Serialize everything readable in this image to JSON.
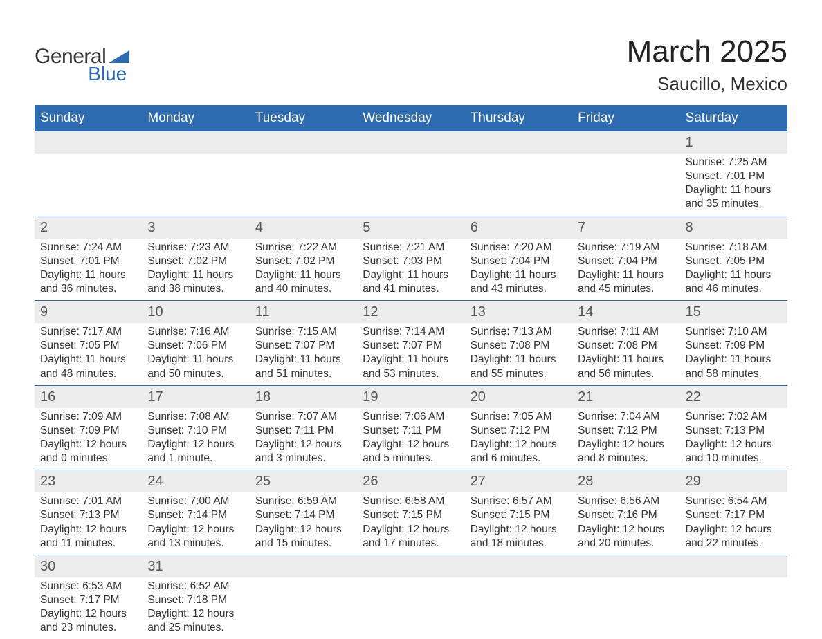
{
  "brand": {
    "line1": "General",
    "line2": "Blue"
  },
  "header": {
    "month": "March 2025",
    "location": "Saucillo, Mexico"
  },
  "colors": {
    "header_bg": "#2d6bb0",
    "header_text": "#ffffff",
    "daynum_bg": "#ececec",
    "border": "#2d6bb0",
    "body_text": "#333333",
    "page_bg": "#ffffff"
  },
  "typography": {
    "month_title_fontsize": 44,
    "location_fontsize": 26,
    "weekday_fontsize": 19,
    "daynum_fontsize": 20,
    "cell_fontsize": 15.5
  },
  "weekdays": [
    "Sunday",
    "Monday",
    "Tuesday",
    "Wednesday",
    "Thursday",
    "Friday",
    "Saturday"
  ],
  "weeks": [
    [
      null,
      null,
      null,
      null,
      null,
      null,
      {
        "n": "1",
        "sunrise": "7:25 AM",
        "sunset": "7:01 PM",
        "dl1": "11 hours",
        "dl2": "and 35 minutes."
      }
    ],
    [
      {
        "n": "2",
        "sunrise": "7:24 AM",
        "sunset": "7:01 PM",
        "dl1": "11 hours",
        "dl2": "and 36 minutes."
      },
      {
        "n": "3",
        "sunrise": "7:23 AM",
        "sunset": "7:02 PM",
        "dl1": "11 hours",
        "dl2": "and 38 minutes."
      },
      {
        "n": "4",
        "sunrise": "7:22 AM",
        "sunset": "7:02 PM",
        "dl1": "11 hours",
        "dl2": "and 40 minutes."
      },
      {
        "n": "5",
        "sunrise": "7:21 AM",
        "sunset": "7:03 PM",
        "dl1": "11 hours",
        "dl2": "and 41 minutes."
      },
      {
        "n": "6",
        "sunrise": "7:20 AM",
        "sunset": "7:04 PM",
        "dl1": "11 hours",
        "dl2": "and 43 minutes."
      },
      {
        "n": "7",
        "sunrise": "7:19 AM",
        "sunset": "7:04 PM",
        "dl1": "11 hours",
        "dl2": "and 45 minutes."
      },
      {
        "n": "8",
        "sunrise": "7:18 AM",
        "sunset": "7:05 PM",
        "dl1": "11 hours",
        "dl2": "and 46 minutes."
      }
    ],
    [
      {
        "n": "9",
        "sunrise": "7:17 AM",
        "sunset": "7:05 PM",
        "dl1": "11 hours",
        "dl2": "and 48 minutes."
      },
      {
        "n": "10",
        "sunrise": "7:16 AM",
        "sunset": "7:06 PM",
        "dl1": "11 hours",
        "dl2": "and 50 minutes."
      },
      {
        "n": "11",
        "sunrise": "7:15 AM",
        "sunset": "7:07 PM",
        "dl1": "11 hours",
        "dl2": "and 51 minutes."
      },
      {
        "n": "12",
        "sunrise": "7:14 AM",
        "sunset": "7:07 PM",
        "dl1": "11 hours",
        "dl2": "and 53 minutes."
      },
      {
        "n": "13",
        "sunrise": "7:13 AM",
        "sunset": "7:08 PM",
        "dl1": "11 hours",
        "dl2": "and 55 minutes."
      },
      {
        "n": "14",
        "sunrise": "7:11 AM",
        "sunset": "7:08 PM",
        "dl1": "11 hours",
        "dl2": "and 56 minutes."
      },
      {
        "n": "15",
        "sunrise": "7:10 AM",
        "sunset": "7:09 PM",
        "dl1": "11 hours",
        "dl2": "and 58 minutes."
      }
    ],
    [
      {
        "n": "16",
        "sunrise": "7:09 AM",
        "sunset": "7:09 PM",
        "dl1": "12 hours",
        "dl2": "and 0 minutes."
      },
      {
        "n": "17",
        "sunrise": "7:08 AM",
        "sunset": "7:10 PM",
        "dl1": "12 hours",
        "dl2": "and 1 minute."
      },
      {
        "n": "18",
        "sunrise": "7:07 AM",
        "sunset": "7:11 PM",
        "dl1": "12 hours",
        "dl2": "and 3 minutes."
      },
      {
        "n": "19",
        "sunrise": "7:06 AM",
        "sunset": "7:11 PM",
        "dl1": "12 hours",
        "dl2": "and 5 minutes."
      },
      {
        "n": "20",
        "sunrise": "7:05 AM",
        "sunset": "7:12 PM",
        "dl1": "12 hours",
        "dl2": "and 6 minutes."
      },
      {
        "n": "21",
        "sunrise": "7:04 AM",
        "sunset": "7:12 PM",
        "dl1": "12 hours",
        "dl2": "and 8 minutes."
      },
      {
        "n": "22",
        "sunrise": "7:02 AM",
        "sunset": "7:13 PM",
        "dl1": "12 hours",
        "dl2": "and 10 minutes."
      }
    ],
    [
      {
        "n": "23",
        "sunrise": "7:01 AM",
        "sunset": "7:13 PM",
        "dl1": "12 hours",
        "dl2": "and 11 minutes."
      },
      {
        "n": "24",
        "sunrise": "7:00 AM",
        "sunset": "7:14 PM",
        "dl1": "12 hours",
        "dl2": "and 13 minutes."
      },
      {
        "n": "25",
        "sunrise": "6:59 AM",
        "sunset": "7:14 PM",
        "dl1": "12 hours",
        "dl2": "and 15 minutes."
      },
      {
        "n": "26",
        "sunrise": "6:58 AM",
        "sunset": "7:15 PM",
        "dl1": "12 hours",
        "dl2": "and 17 minutes."
      },
      {
        "n": "27",
        "sunrise": "6:57 AM",
        "sunset": "7:15 PM",
        "dl1": "12 hours",
        "dl2": "and 18 minutes."
      },
      {
        "n": "28",
        "sunrise": "6:56 AM",
        "sunset": "7:16 PM",
        "dl1": "12 hours",
        "dl2": "and 20 minutes."
      },
      {
        "n": "29",
        "sunrise": "6:54 AM",
        "sunset": "7:17 PM",
        "dl1": "12 hours",
        "dl2": "and 22 minutes."
      }
    ],
    [
      {
        "n": "30",
        "sunrise": "6:53 AM",
        "sunset": "7:17 PM",
        "dl1": "12 hours",
        "dl2": "and 23 minutes."
      },
      {
        "n": "31",
        "sunrise": "6:52 AM",
        "sunset": "7:18 PM",
        "dl1": "12 hours",
        "dl2": "and 25 minutes."
      },
      null,
      null,
      null,
      null,
      null
    ]
  ],
  "labels": {
    "sunrise": "Sunrise: ",
    "sunset": "Sunset: ",
    "daylight": "Daylight: "
  }
}
